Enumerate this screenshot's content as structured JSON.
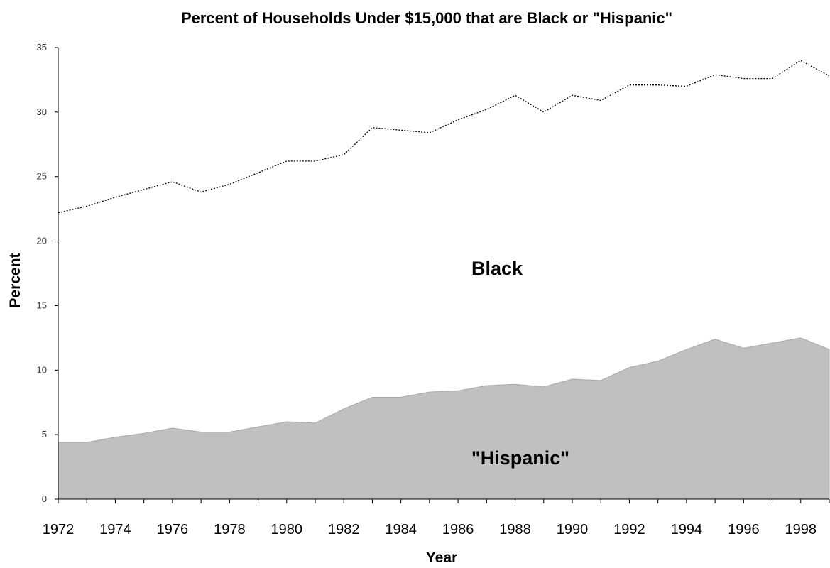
{
  "chart_data": {
    "type": "area",
    "title": "Percent of Households Under $15,000 that are Black or \"Hispanic\"",
    "xlabel": "Year",
    "ylabel": "Percent",
    "ylim": [
      0,
      35
    ],
    "xlim": [
      1972,
      1999
    ],
    "y_ticks": [
      "0",
      "5",
      "10",
      "15",
      "20",
      "25",
      "30",
      "35"
    ],
    "x_tick_labels": [
      "1972",
      "1974",
      "1976",
      "1978",
      "1980",
      "1982",
      "1984",
      "1986",
      "1988",
      "1990",
      "1992",
      "1994",
      "1996",
      "1998"
    ],
    "x": [
      1972,
      1973,
      1974,
      1975,
      1976,
      1977,
      1978,
      1979,
      1980,
      1981,
      1982,
      1983,
      1984,
      1985,
      1986,
      1987,
      1988,
      1989,
      1990,
      1991,
      1992,
      1993,
      1994,
      1995,
      1996,
      1997,
      1998,
      1999
    ],
    "series": [
      {
        "name": "Black",
        "style": "dotted-line",
        "color": "#000000",
        "values": [
          22.2,
          22.7,
          23.4,
          24.0,
          24.6,
          23.8,
          24.4,
          25.3,
          26.2,
          26.2,
          26.7,
          28.8,
          28.6,
          28.4,
          29.4,
          30.2,
          31.3,
          30.0,
          31.3,
          30.9,
          32.1,
          32.1,
          32.0,
          32.9,
          32.6,
          32.6,
          34.0,
          32.8
        ]
      },
      {
        "name": "\"Hispanic\"",
        "style": "filled-area",
        "color": "#c0c0c0",
        "values": [
          4.4,
          4.4,
          4.8,
          5.1,
          5.5,
          5.2,
          5.2,
          5.6,
          6.0,
          5.9,
          7.0,
          7.9,
          7.9,
          8.3,
          8.4,
          8.8,
          8.9,
          8.7,
          9.3,
          9.2,
          10.2,
          10.7,
          11.6,
          12.4,
          11.7,
          12.1,
          12.5,
          11.6
        ]
      }
    ],
    "annotations": [
      "Black",
      "\"Hispanic\""
    ],
    "grid": false,
    "legend": "none"
  }
}
